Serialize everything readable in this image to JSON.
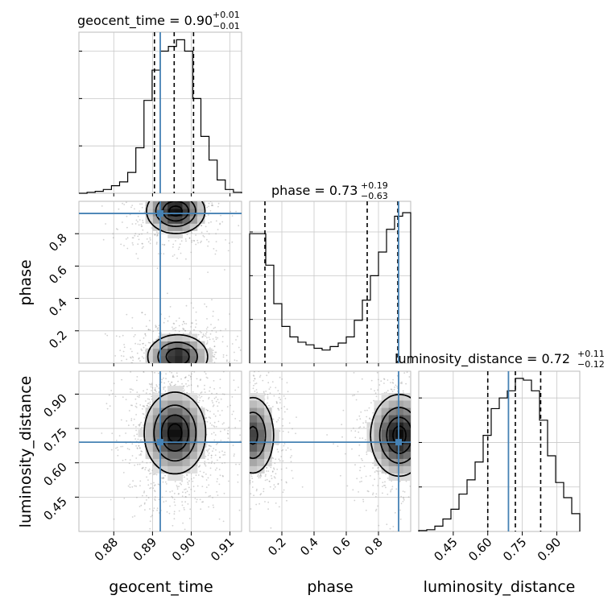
{
  "chart_data": {
    "type": "corner",
    "parameters": [
      "geocent_time",
      "phase",
      "luminosity_distance"
    ],
    "truth": {
      "geocent_time": 0.892,
      "phase": 0.925,
      "luminosity_distance": 0.69
    },
    "colors": {
      "truth": "#4682b4",
      "hist": "#000000",
      "grid": "#c8c8c8"
    },
    "grid": true,
    "marginals": [
      {
        "parameter": "geocent_time",
        "title_main": "geocent_time = 0.90",
        "title_sup": "+0.01",
        "title_sub": "−0.01",
        "quantiles": [
          0.8905,
          0.8956,
          0.9006
        ],
        "range": [
          0.871,
          0.913
        ],
        "bin_edges": [
          0.871,
          0.8731,
          0.8752,
          0.8773,
          0.8794,
          0.8815,
          0.8836,
          0.8857,
          0.8878,
          0.8899,
          0.892,
          0.8941,
          0.8962,
          0.8983,
          0.9004,
          0.9025,
          0.9046,
          0.9067,
          0.9088,
          0.9109,
          0.913
        ],
        "counts": [
          0,
          1,
          2,
          4,
          8,
          12,
          22,
          48,
          98,
          130,
          150,
          155,
          162,
          150,
          100,
          60,
          35,
          14,
          4,
          1
        ],
        "ylim": [
          0,
          170
        ],
        "ticks": [
          0.88,
          0.89,
          0.9,
          0.91
        ],
        "tick_labels": [
          "0.88",
          "0.89",
          "0.90",
          "0.91"
        ]
      },
      {
        "parameter": "phase",
        "title_main": "phase = 0.73",
        "title_sup": "+0.19",
        "title_sub": "−0.63",
        "quantiles": [
          0.095,
          0.73,
          0.92
        ],
        "range": [
          0.0,
          1.0
        ],
        "bin_edges": [
          0.0,
          0.05,
          0.1,
          0.15,
          0.2,
          0.25,
          0.3,
          0.35,
          0.4,
          0.45,
          0.5,
          0.55,
          0.6,
          0.65,
          0.7,
          0.75,
          0.8,
          0.85,
          0.9,
          0.95,
          1.0
        ],
        "counts": [
          148,
          148,
          112,
          68,
          42,
          30,
          24,
          21,
          17,
          15,
          19,
          23,
          30,
          49,
          72,
          100,
          127,
          153,
          168,
          172
        ],
        "ylim": [
          0,
          185
        ],
        "ticks": [
          0.2,
          0.4,
          0.6,
          0.8
        ],
        "tick_labels": [
          "0.2",
          "0.4",
          "0.6",
          "0.8"
        ]
      },
      {
        "parameter": "luminosity_distance",
        "title_main": "luminosity_distance = 0.72",
        "title_sup": "+0.11",
        "title_sub": "−0.12",
        "quantiles": [
          0.6,
          0.72,
          0.83
        ],
        "range": [
          0.3,
          1.0
        ],
        "bin_edges": [
          0.3,
          0.335,
          0.37,
          0.405,
          0.44,
          0.475,
          0.51,
          0.545,
          0.58,
          0.615,
          0.65,
          0.685,
          0.72,
          0.755,
          0.79,
          0.825,
          0.86,
          0.895,
          0.93,
          0.965,
          1.0
        ],
        "counts": [
          1,
          2,
          6,
          14,
          25,
          42,
          58,
          78,
          108,
          138,
          150,
          158,
          172,
          170,
          158,
          125,
          85,
          55,
          38,
          20
        ],
        "ylim": [
          0,
          180
        ],
        "ticks": [
          0.45,
          0.6,
          0.75,
          0.9
        ],
        "tick_labels": [
          "0.45",
          "0.60",
          "0.75",
          "0.90"
        ]
      }
    ],
    "joint": [
      {
        "x": "geocent_time",
        "y": "phase",
        "xlim": [
          0.871,
          0.913
        ],
        "ylim": [
          0.0,
          1.0
        ],
        "modes": [
          {
            "x": 0.896,
            "y": 0.94,
            "sx": 0.0038,
            "sy": 0.07,
            "w": 1.0
          },
          {
            "x": 0.8965,
            "y": 0.04,
            "sx": 0.004,
            "sy": 0.07,
            "w": 0.9
          }
        ],
        "yticks": [
          0.2,
          0.4,
          0.6,
          0.8
        ],
        "ytick_labels": [
          "0.2",
          "0.4",
          "0.6",
          "0.8"
        ]
      },
      {
        "x": "geocent_time",
        "y": "luminosity_distance",
        "xlim": [
          0.871,
          0.913
        ],
        "ylim": [
          0.3,
          1.0
        ],
        "modes": [
          {
            "x": 0.8958,
            "y": 0.73,
            "sx": 0.004,
            "sy": 0.09,
            "w": 1.0
          }
        ],
        "yticks": [
          0.45,
          0.6,
          0.75,
          0.9
        ],
        "ytick_labels": [
          "0.45",
          "0.60",
          "0.75",
          "0.90"
        ]
      },
      {
        "x": "phase",
        "y": "luminosity_distance",
        "xlim": [
          0.0,
          1.0
        ],
        "ylim": [
          0.3,
          1.0
        ],
        "modes": [
          {
            "x": 0.93,
            "y": 0.72,
            "sx": 0.09,
            "sy": 0.09,
            "w": 1.0
          },
          {
            "x": 0.02,
            "y": 0.72,
            "sx": 0.07,
            "sy": 0.09,
            "w": 0.75
          }
        ]
      }
    ],
    "axis_labels": {
      "bottom": [
        "geocent_time",
        "phase",
        "luminosity_distance"
      ],
      "left": [
        "phase",
        "luminosity_distance"
      ]
    }
  }
}
